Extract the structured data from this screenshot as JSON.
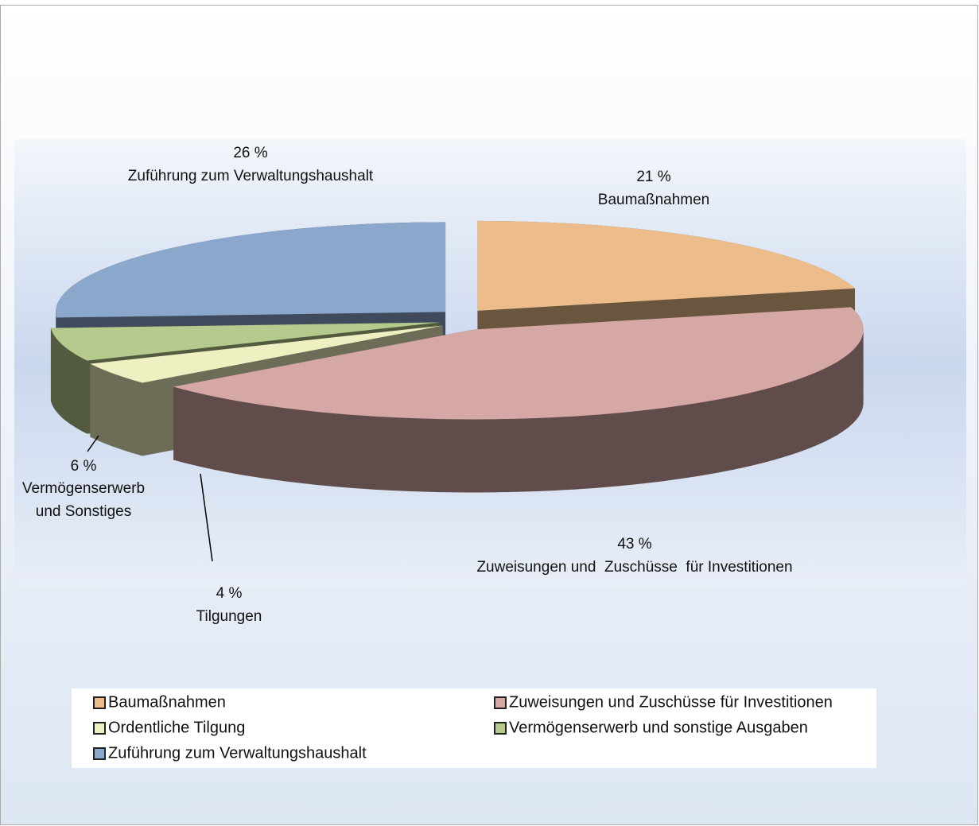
{
  "chart_data": {
    "type": "pie",
    "categories": [
      "Baumaßnahmen",
      "Zuweisungen und Zuschüsse für Investitionen",
      "Ordentliche Tilgung",
      "Vermögenserwerb und sonstige Ausgaben",
      "Zuführung zum Verwaltungshaushalt"
    ],
    "values": [
      21,
      43,
      4,
      6,
      26
    ],
    "value_labels": [
      "21 %",
      "43 %",
      "4 %",
      "6 %",
      "26 %"
    ],
    "slice_labels": [
      [
        "Baumaßnahmen"
      ],
      [
        "Zuweisungen und  Zuschüsse  für Investitionen"
      ],
      [
        "Tilgungen"
      ],
      [
        "Vermögenserwerb",
        "und Sonstiges"
      ],
      [
        "Zuführung zum Verwaltungshaushalt"
      ]
    ],
    "colors": [
      "#ecbd8b",
      "#d5a8a6",
      "#eff0c2",
      "#b6ca8d",
      "#8ba7cc"
    ],
    "legend": "bottom"
  }
}
